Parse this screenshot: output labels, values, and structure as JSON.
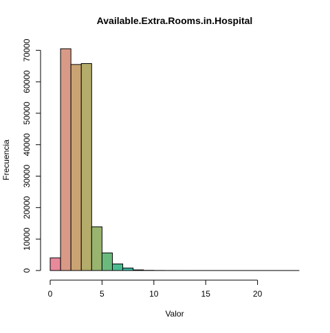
{
  "chart_data": {
    "type": "bar",
    "title": "Available.Extra.Rooms.in.Hospital",
    "xlabel": "Valor",
    "ylabel": "Frecuencia",
    "bin_width": 1,
    "bins": [
      {
        "start": 0,
        "end": 1,
        "value": 4000,
        "color": "#E88A9B"
      },
      {
        "start": 1,
        "end": 2,
        "value": 70500,
        "color": "#D89A86"
      },
      {
        "start": 2,
        "end": 3,
        "value": 65500,
        "color": "#C9A472"
      },
      {
        "start": 3,
        "end": 4,
        "value": 65800,
        "color": "#B3AC6A"
      },
      {
        "start": 4,
        "end": 5,
        "value": 13900,
        "color": "#98B46F"
      },
      {
        "start": 5,
        "end": 6,
        "value": 5600,
        "color": "#6BBA7D"
      },
      {
        "start": 6,
        "end": 7,
        "value": 2100,
        "color": "#4CBB91"
      },
      {
        "start": 7,
        "end": 8,
        "value": 800,
        "color": "#3DB9A4"
      },
      {
        "start": 8,
        "end": 9,
        "value": 200,
        "color": "#3AB6B5"
      },
      {
        "start": 9,
        "end": 10,
        "value": 60,
        "color": "#4AB1C4"
      },
      {
        "start": 10,
        "end": 11,
        "value": 25,
        "color": "#62AAD0"
      },
      {
        "start": 11,
        "end": 12,
        "value": 10,
        "color": "#7FA1DA"
      },
      {
        "start": 12,
        "end": 13,
        "value": 5,
        "color": "#9B97DF"
      },
      {
        "start": 13,
        "end": 14,
        "value": 3,
        "color": "#B48DDF"
      },
      {
        "start": 14,
        "end": 15,
        "value": 2,
        "color": "#C886D8"
      },
      {
        "start": 15,
        "end": 16,
        "value": 2,
        "color": "#D782CB"
      },
      {
        "start": 16,
        "end": 17,
        "value": 1,
        "color": "#E082BB"
      },
      {
        "start": 17,
        "end": 18,
        "value": 1,
        "color": "#E585AA"
      },
      {
        "start": 18,
        "end": 19,
        "value": 1,
        "color": "#E788A1"
      },
      {
        "start": 19,
        "end": 20,
        "value": 1,
        "color": "#E8899E"
      },
      {
        "start": 20,
        "end": 21,
        "value": 1,
        "color": "#E88A9C"
      },
      {
        "start": 21,
        "end": 22,
        "value": 1,
        "color": "#E88A9B"
      },
      {
        "start": 22,
        "end": 23,
        "value": 1,
        "color": "#E88A9B"
      },
      {
        "start": 23,
        "end": 24,
        "value": 1,
        "color": "#E88A9B"
      }
    ],
    "xlim": [
      0,
      24
    ],
    "ylim": [
      0,
      70500
    ],
    "xticks": [
      0,
      5,
      10,
      15,
      20
    ],
    "yticks": [
      0,
      10000,
      20000,
      30000,
      40000,
      50000,
      60000,
      70000
    ],
    "grid": false
  }
}
